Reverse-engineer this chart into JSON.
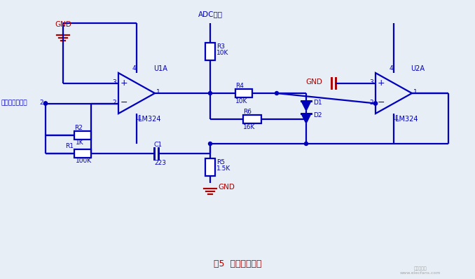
{
  "bg_color": "#e8eef5",
  "line_color": "#0000bb",
  "red_color": "#aa0000",
  "figsize": [
    6.78,
    3.98
  ],
  "dpi": 100,
  "title": "图5  信号调理电路",
  "adc_label": "ADC接口",
  "sensor_label": "传感器信号输出",
  "u1a": "U1A",
  "u2a": "U2A",
  "lm324": "LM324",
  "gnd": "GND",
  "r1": "R1",
  "r2": "R2",
  "r2val": "1K",
  "r2bval": "100K",
  "r3": "R3",
  "r3val": "10K",
  "r4": "R4",
  "r4val": "10K",
  "r5": "R5",
  "r5val": "1.5K",
  "r6": "R6",
  "r6val": "16K",
  "c1": "C1",
  "c1val": "223",
  "d1": "D1",
  "d2": "D2"
}
